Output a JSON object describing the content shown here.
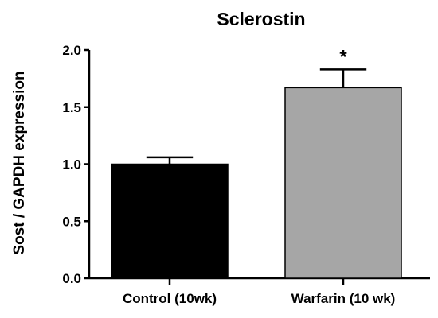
{
  "chart_data": {
    "type": "bar",
    "title": "Sclerostin",
    "xlabel": "",
    "ylabel": "Sost / GAPDH expression",
    "categories": [
      "Control (10wk)",
      "Warfarin (10 wk)"
    ],
    "values": [
      1.0,
      1.67
    ],
    "errors": [
      0.06,
      0.16
    ],
    "ylim": [
      0.0,
      2.0
    ],
    "yticks": [
      "0.0",
      "0.5",
      "1.0",
      "1.5",
      "2.0"
    ],
    "grid": false,
    "legend": "none",
    "colors": [
      "#000000",
      "#a6a6a6"
    ],
    "annotations": [
      {
        "category_index": 1,
        "text": "*"
      }
    ]
  }
}
